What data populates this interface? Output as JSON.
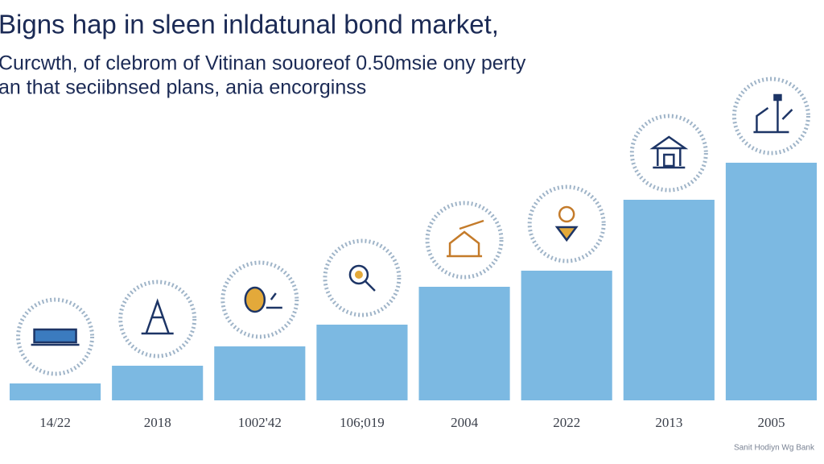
{
  "chart_data": {
    "type": "bar",
    "title": "Bigns hap in sleen inldatunal bond market,",
    "subtitle": [
      "Curcwth, of clebrom of Vitinan souoreof 0.50msie ony perty",
      "an that seciibnsed plans, ania encorginss"
    ],
    "categories": [
      "14/22",
      "2018",
      "1002'42",
      "106;019",
      "2004",
      "2022",
      "2013",
      "2005"
    ],
    "values": [
      21,
      43,
      67,
      94,
      141,
      161,
      249,
      295
    ],
    "color": "#7cb9e2",
    "ylim": [
      0,
      300
    ],
    "source": "Sanit Hodiyn Wg Bank"
  }
}
